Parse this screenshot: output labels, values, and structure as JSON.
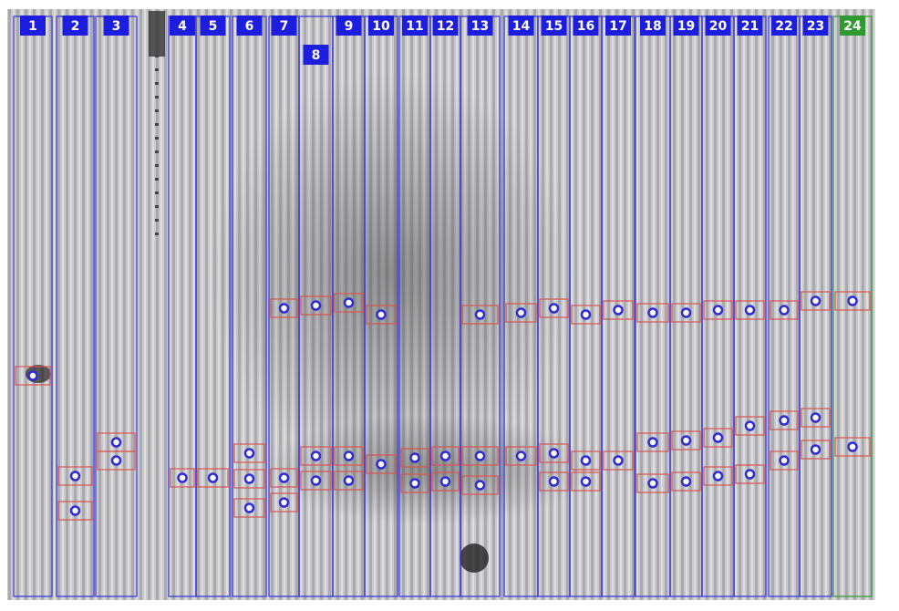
{
  "lanes": [
    "1",
    "2",
    "3",
    "4",
    "5",
    "6",
    "7",
    "8",
    "9",
    "10",
    "11",
    "12",
    "13",
    "14",
    "15",
    "16",
    "17",
    "18",
    "19",
    "20",
    "21",
    "22",
    "23",
    "24"
  ]
}
